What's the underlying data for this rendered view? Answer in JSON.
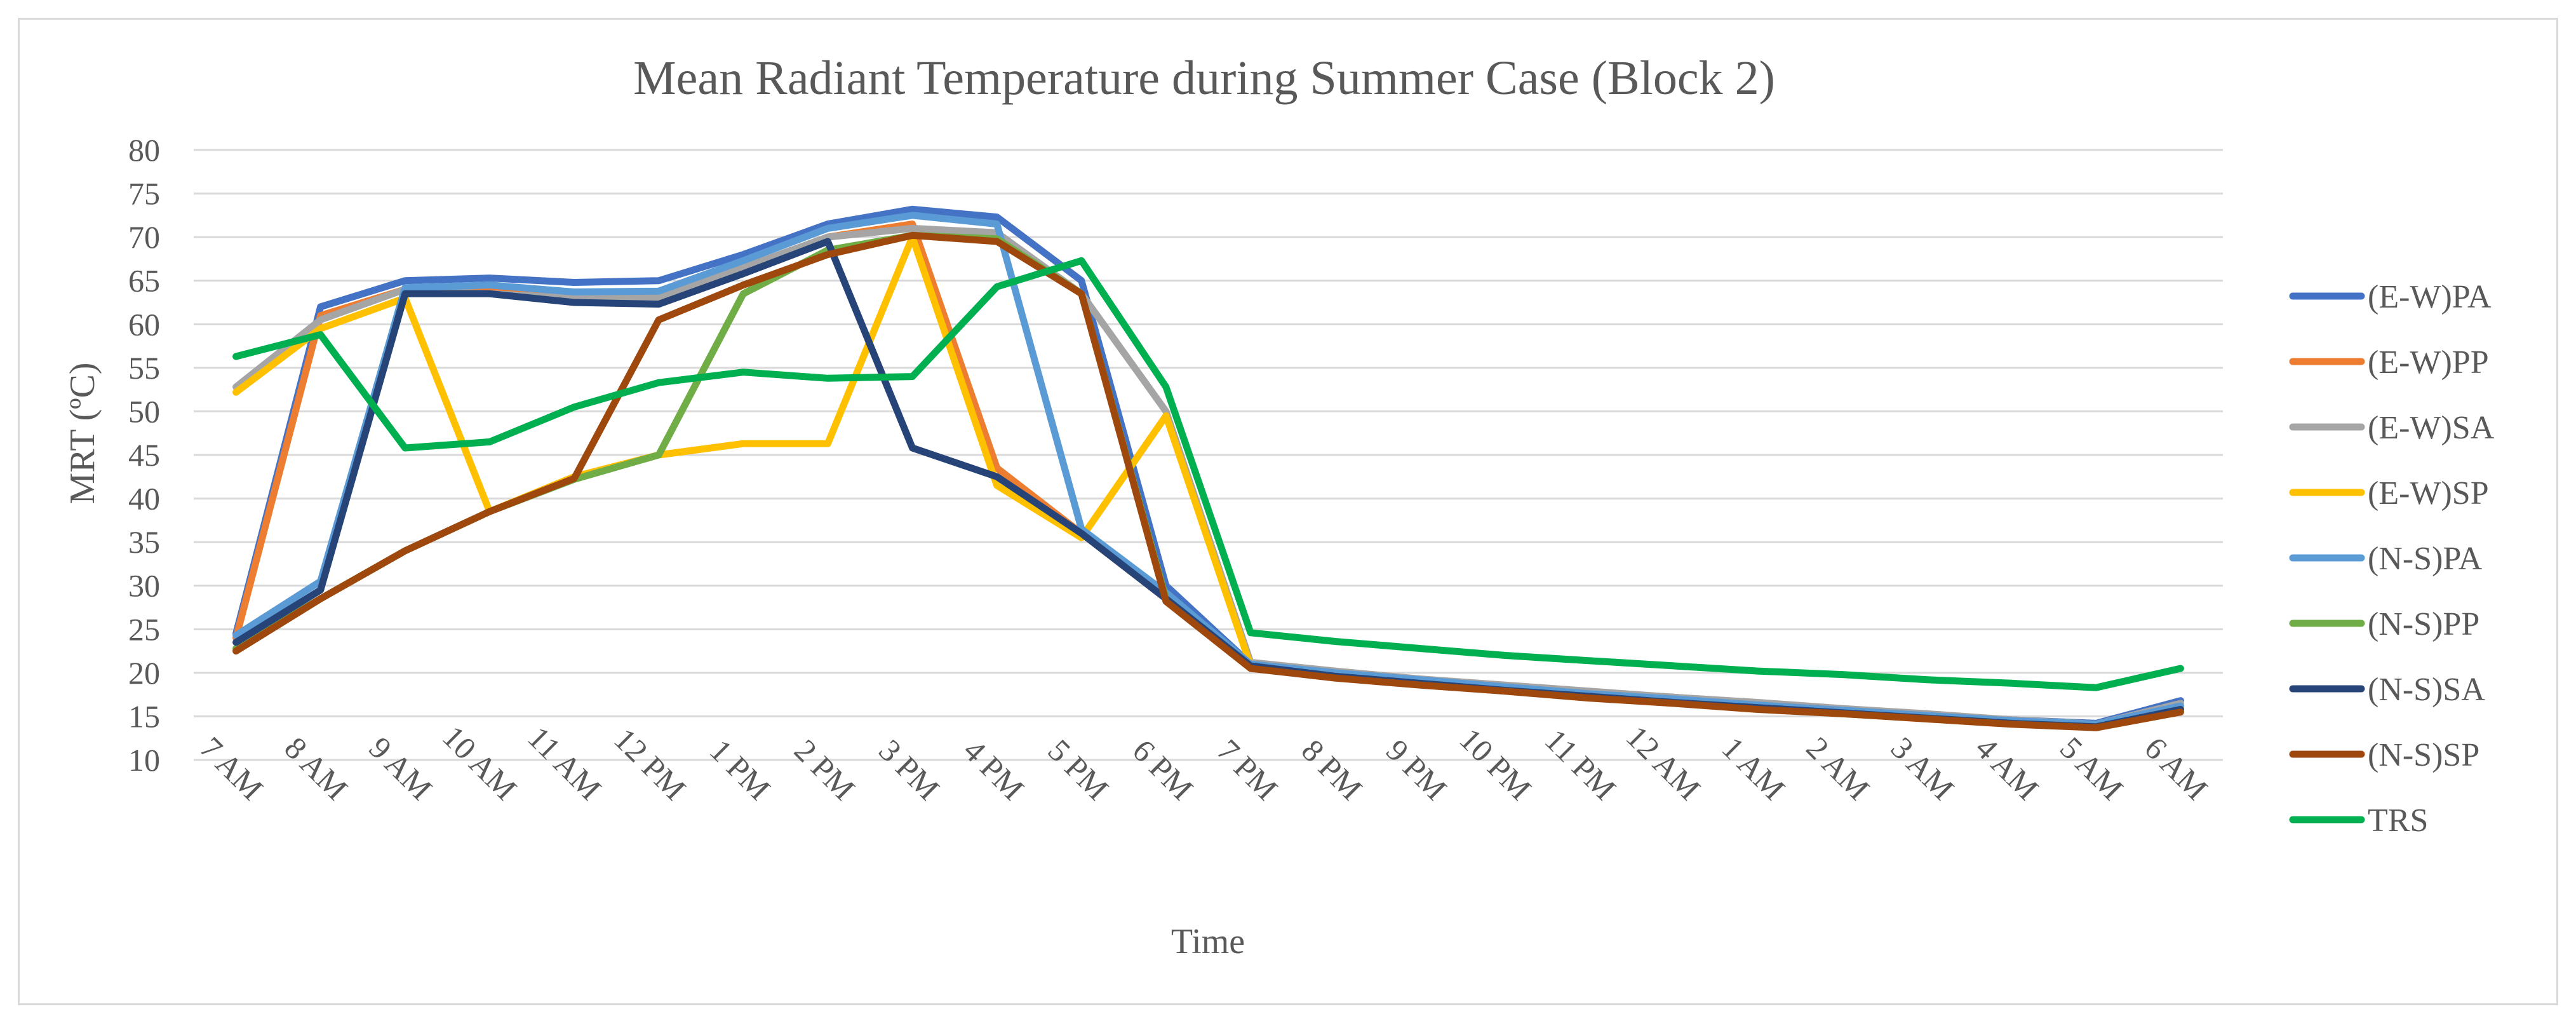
{
  "chart_data": {
    "type": "line",
    "title": "Mean Radiant Temperature during Summer Case (Block 2)",
    "xlabel": "Time",
    "ylabel": "MRT (ºC)",
    "ylim": [
      10,
      80
    ],
    "yticks": [
      10,
      15,
      20,
      25,
      30,
      35,
      40,
      45,
      50,
      55,
      60,
      65,
      70,
      75,
      80
    ],
    "grid": true,
    "legend_position": "right",
    "categories": [
      "7 AM",
      "8 AM",
      "9 AM",
      "10 AM",
      "11 AM",
      "12 PM",
      "1 PM",
      "2 PM",
      "3 PM",
      "4 PM",
      "5 PM",
      "6 PM",
      "7 PM",
      "8 PM",
      "9 PM",
      "10 PM",
      "11 PM",
      "12 AM",
      "1 AM",
      "2 AM",
      "3 AM",
      "4 AM",
      "5 AM",
      "6 AM"
    ],
    "series": [
      {
        "name": "(E-W)PA",
        "color": "#4472C4",
        "values": [
          24.5,
          62,
          65,
          65.3,
          64.8,
          65,
          68,
          71.5,
          73.2,
          72.3,
          65,
          30,
          21,
          20,
          19.2,
          18.5,
          17.8,
          17.2,
          16.5,
          15.8,
          15.2,
          14.6,
          14.2,
          16.8
        ]
      },
      {
        "name": "(E-W)PP",
        "color": "#ED7D31",
        "values": [
          24,
          61,
          64,
          64,
          63.5,
          63.5,
          66,
          70,
          71.5,
          43.5,
          36,
          28.5,
          20.8,
          19.5,
          18.8,
          18,
          17.2,
          16.6,
          15.9,
          15.3,
          14.8,
          14.2,
          13.8,
          15.8
        ]
      },
      {
        "name": "(E-W)SA",
        "color": "#A5A5A5",
        "values": [
          52.8,
          60.5,
          64,
          63.5,
          63,
          63,
          66.5,
          70,
          71,
          70.5,
          63.5,
          50,
          21.2,
          20.2,
          19.3,
          18.6,
          17.9,
          17.2,
          16.6,
          15.9,
          15.3,
          14.6,
          14.1,
          16.5
        ]
      },
      {
        "name": "(E-W)SP",
        "color": "#FFC000",
        "values": [
          52.2,
          59.5,
          63,
          38.5,
          42.5,
          45,
          46.3,
          46.3,
          70,
          41.5,
          35.5,
          49.5,
          20.8,
          19.6,
          18.8,
          18.1,
          17.3,
          16.6,
          16,
          15.3,
          14.8,
          14.2,
          13.8,
          15.9
        ]
      },
      {
        "name": "(N-S)PA",
        "color": "#5B9BD5",
        "values": [
          24.3,
          30.5,
          64.2,
          64.5,
          63.7,
          63.8,
          67.3,
          71,
          72.5,
          71.5,
          36.5,
          29.2,
          21,
          20,
          19.2,
          18.4,
          17.6,
          17,
          16.3,
          15.7,
          15.1,
          14.5,
          14.1,
          16.2
        ]
      },
      {
        "name": "(N-S)PP",
        "color": "#70AD47",
        "values": [
          22.8,
          28.5,
          34,
          38.5,
          42.2,
          45,
          63.5,
          68.5,
          70.2,
          69.8,
          63.5,
          28.5,
          20.7,
          19.5,
          18.7,
          17.9,
          17.2,
          16.5,
          15.9,
          15.3,
          14.8,
          14.2,
          13.8,
          15.6
        ]
      },
      {
        "name": "(N-S)SA",
        "color": "#264478",
        "values": [
          23.5,
          29.5,
          63.5,
          63.5,
          62.5,
          62.3,
          65.8,
          69.5,
          45.8,
          42.5,
          36,
          28.5,
          20.8,
          19.6,
          18.8,
          18,
          17.3,
          16.6,
          16,
          15.4,
          14.8,
          14.2,
          13.8,
          15.8
        ]
      },
      {
        "name": "(N-S)SP",
        "color": "#9E480E",
        "values": [
          22.5,
          28.5,
          34,
          38.5,
          42.3,
          60.5,
          64.5,
          68,
          70.2,
          69.5,
          63.5,
          28.2,
          20.5,
          19.4,
          18.6,
          17.9,
          17.1,
          16.5,
          15.8,
          15.3,
          14.7,
          14.1,
          13.7,
          15.5
        ]
      },
      {
        "name": "TRS",
        "color": "#00B050",
        "values": [
          56.3,
          58.8,
          45.8,
          46.5,
          50.5,
          53.3,
          54.5,
          53.8,
          54,
          64.3,
          67.3,
          52.8,
          24.6,
          23.6,
          22.8,
          22,
          21.4,
          20.8,
          20.2,
          19.8,
          19.2,
          18.8,
          18.3,
          20.5
        ]
      }
    ]
  }
}
